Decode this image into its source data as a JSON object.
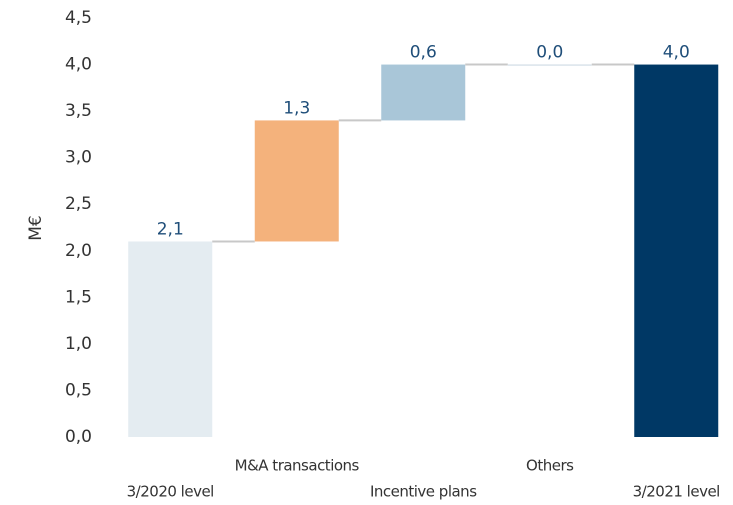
{
  "chart_data": {
    "type": "waterfall",
    "y_label": "M€",
    "categories": [
      "3/2020 level",
      "M&A transactions",
      "Incentive plans",
      "Others",
      "3/2021 level"
    ],
    "values": [
      2.1,
      1.3,
      0.6,
      0.0,
      4.0
    ],
    "value_labels": [
      "2,1",
      "1,3",
      "0,6",
      "0,0",
      "4,0"
    ],
    "measures": [
      "absolute",
      "relative",
      "relative",
      "relative",
      "total"
    ],
    "colors": [
      "#e4ecf1",
      "#f4b27c",
      "#a9c6d8",
      "#c8d6e0",
      "#003865"
    ],
    "ylim": [
      0,
      4.5
    ],
    "yticks": [
      {
        "value": 0,
        "label": "0,0"
      },
      {
        "value": 0.5,
        "label": "0,5"
      },
      {
        "value": 1,
        "label": "1,0"
      },
      {
        "value": 1.5,
        "label": "1,5"
      },
      {
        "value": 2,
        "label": "2,0"
      },
      {
        "value": 2.5,
        "label": "2,5"
      },
      {
        "value": 3,
        "label": "3,0"
      },
      {
        "value": 3.5,
        "label": "3,5"
      },
      {
        "value": 4,
        "label": "4,0"
      },
      {
        "value": 4.5,
        "label": "4,5"
      }
    ]
  }
}
